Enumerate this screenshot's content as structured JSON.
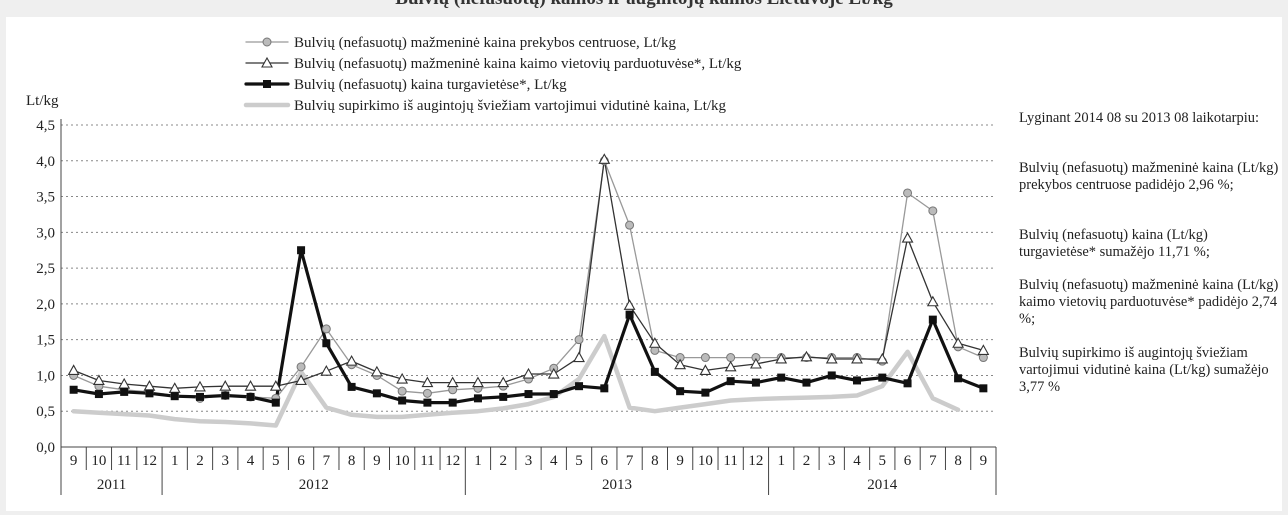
{
  "header": {
    "text": "Bulvių (nefasuotų) kainos ir augintojų kainos Lietuvoje Lt/kg"
  },
  "chart_data": {
    "type": "line",
    "ylabel": "Lt/kg",
    "ylim": [
      0,
      4.5
    ],
    "yticks": [
      "0,0",
      "0,5",
      "1,0",
      "1,5",
      "2,0",
      "2,5",
      "3,0",
      "3,5",
      "4,0",
      "4,5"
    ],
    "grid": true,
    "legend_position": "top-center",
    "months": [
      "9",
      "10",
      "11",
      "12",
      "1",
      "2",
      "3",
      "4",
      "5",
      "6",
      "7",
      "8",
      "9",
      "10",
      "11",
      "12",
      "1",
      "2",
      "3",
      "4",
      "5",
      "6",
      "7",
      "8",
      "9",
      "10",
      "11",
      "12",
      "1",
      "2",
      "3",
      "4",
      "5",
      "6",
      "7",
      "8",
      "9"
    ],
    "years": [
      {
        "label": "2011",
        "count": 4
      },
      {
        "label": "2012",
        "count": 12
      },
      {
        "label": "2013",
        "count": 12
      },
      {
        "label": "2014",
        "count": 9
      }
    ],
    "series": [
      {
        "name": "Bulvių (nefasuotų) mažmeninė kaina prekybos centruose, Lt/kg",
        "color": "#999999",
        "marker": "circle",
        "width": 1.3,
        "values": [
          1.0,
          0.85,
          0.8,
          0.77,
          0.72,
          0.68,
          0.72,
          0.7,
          0.68,
          1.12,
          1.65,
          1.15,
          1.0,
          0.78,
          0.75,
          0.8,
          0.82,
          0.85,
          0.95,
          1.1,
          1.5,
          4.0,
          3.1,
          1.35,
          1.25,
          1.25,
          1.25,
          1.25,
          1.25,
          1.25,
          1.25,
          1.25,
          1.2,
          3.55,
          3.3,
          1.4,
          1.25
        ]
      },
      {
        "name": "Bulvių (nefasuotų) mažmeninė kaina kaimo vietovių parduotuvėse*, Lt/kg",
        "color": "#333333",
        "marker": "triangle",
        "width": 1.3,
        "values": [
          1.07,
          0.93,
          0.88,
          0.85,
          0.82,
          0.84,
          0.85,
          0.85,
          0.85,
          0.93,
          1.06,
          1.2,
          1.05,
          0.95,
          0.9,
          0.9,
          0.9,
          0.9,
          1.02,
          1.02,
          1.25,
          4.02,
          1.98,
          1.45,
          1.15,
          1.07,
          1.12,
          1.16,
          1.23,
          1.26,
          1.23,
          1.23,
          1.23,
          2.92,
          2.03,
          1.45,
          1.35
        ]
      },
      {
        "name": "Bulvių (nefasuotų) kaina turgavietėse*, Lt/kg",
        "color": "#111111",
        "marker": "square",
        "width": 3.2,
        "values": [
          0.8,
          0.74,
          0.77,
          0.75,
          0.71,
          0.7,
          0.72,
          0.7,
          0.62,
          2.75,
          1.45,
          0.84,
          0.75,
          0.65,
          0.62,
          0.62,
          0.68,
          0.7,
          0.74,
          0.74,
          0.85,
          0.82,
          1.85,
          1.05,
          0.78,
          0.76,
          0.92,
          0.9,
          0.97,
          0.9,
          1.0,
          0.93,
          0.97,
          0.89,
          1.78,
          0.96,
          0.82
        ]
      },
      {
        "name": "Bulvių supirkimo iš augintojų šviežiam vartojimui vidutinė kaina, Lt/kg",
        "color": "#cccccc",
        "marker": "none",
        "width": 4.5,
        "values": [
          0.5,
          0.48,
          0.46,
          0.44,
          0.39,
          0.36,
          0.35,
          0.33,
          0.3,
          1.05,
          0.55,
          0.45,
          0.42,
          0.42,
          0.45,
          0.48,
          0.5,
          0.54,
          0.6,
          0.7,
          0.95,
          1.55,
          0.55,
          0.5,
          0.55,
          0.6,
          0.65,
          0.67,
          0.68,
          0.69,
          0.7,
          0.72,
          0.85,
          1.33,
          0.68,
          0.52,
          null
        ]
      }
    ]
  },
  "notes": [
    "Lyginant 2014 08 su 2013 08 laikotarpiu:",
    "Bulvių (nefasuotų) mažmeninė kaina (Lt/kg) prekybos centruose padidėjo 2,96  %;",
    "Bulvių (nefasuotų) kaina (Lt/kg) turgavietėse* sumažėjo 11,71 %;",
    "Bulvių (nefasuotų) mažmeninė kaina (Lt/kg) kaimo vietovių parduotuvėse* padidėjo 2,74 %;",
    "Bulvių supirkimo iš augintojų šviežiam vartojimui vidutinė kaina (Lt/kg) sumažėjo 3,77 %"
  ]
}
